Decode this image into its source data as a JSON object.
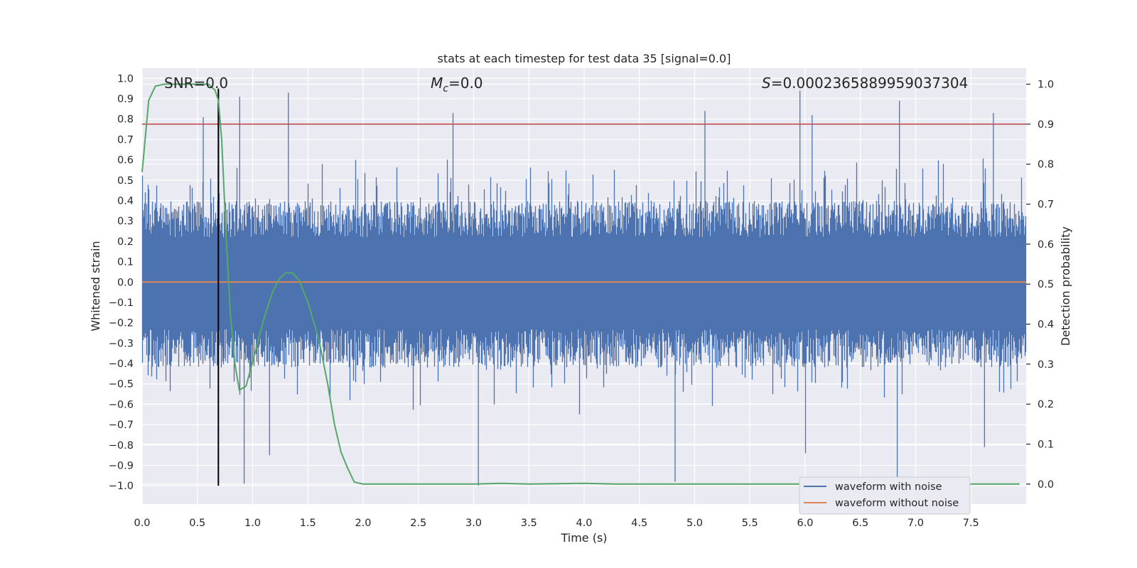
{
  "chart_data": {
    "type": "line",
    "title": "stats at each timestep for test data 35 [signal=0.0]",
    "xlabel": "Time (s)",
    "ylabel": "Whitened strain",
    "y2label": "Detection probability",
    "xlim": [
      0.0,
      8.0
    ],
    "ylim": [
      -1.09,
      1.05
    ],
    "y2lim": [
      -0.05,
      1.04
    ],
    "xticks": [
      0.0,
      0.5,
      1.0,
      1.5,
      2.0,
      2.5,
      3.0,
      3.5,
      4.0,
      4.5,
      5.0,
      5.5,
      6.0,
      6.5,
      7.0,
      7.5
    ],
    "xtick_labels": [
      "0.0",
      "0.5",
      "1.0",
      "1.5",
      "2.0",
      "2.5",
      "3.0",
      "3.5",
      "4.0",
      "4.5",
      "5.0",
      "5.5",
      "6.0",
      "6.5",
      "7.0",
      "7.5"
    ],
    "yticks": [
      -1.0,
      -0.9,
      -0.8,
      -0.7,
      -0.6,
      -0.5,
      -0.4,
      -0.3,
      -0.2,
      -0.1,
      0.0,
      0.1,
      0.2,
      0.3,
      0.4,
      0.5,
      0.6,
      0.7,
      0.8,
      0.9,
      1.0
    ],
    "ytick_labels": [
      "−1.0",
      "−0.9",
      "−0.8",
      "−0.7",
      "−0.6",
      "−0.5",
      "−0.4",
      "−0.3",
      "−0.2",
      "−0.1",
      "0.0",
      "0.1",
      "0.2",
      "0.3",
      "0.4",
      "0.5",
      "0.6",
      "0.7",
      "0.8",
      "0.9",
      "1.0"
    ],
    "y2ticks": [
      0.0,
      0.1,
      0.2,
      0.3,
      0.4,
      0.5,
      0.6,
      0.7,
      0.8,
      0.9,
      1.0
    ],
    "y2tick_labels": [
      "0.0",
      "0.1",
      "0.2",
      "0.3",
      "0.4",
      "0.5",
      "0.6",
      "0.7",
      "0.8",
      "0.9",
      "1.0"
    ],
    "grid": true,
    "annotations": {
      "snr": "SNR=0.0",
      "mc_symbol": "M",
      "mc_sub": "c",
      "mc_value": "=0.0",
      "s_symbol": "S",
      "s_value": "=0.0002365889959037304"
    },
    "series": [
      {
        "name": "waveform with noise",
        "axis": "left",
        "color": "#4c72b0",
        "description": "dense whitened-strain noise",
        "typical_range": [
          -0.42,
          0.4
        ],
        "spikes": [
          {
            "x": 0.55,
            "y": 0.81
          },
          {
            "x": 0.69,
            "y": 0.94
          },
          {
            "x": 0.88,
            "y": 0.91
          },
          {
            "x": 0.92,
            "y": -0.99
          },
          {
            "x": 1.32,
            "y": 0.93
          },
          {
            "x": 1.15,
            "y": -0.85
          },
          {
            "x": 2.81,
            "y": 0.83
          },
          {
            "x": 3.04,
            "y": -1.0
          },
          {
            "x": 5.09,
            "y": 0.84
          },
          {
            "x": 5.95,
            "y": 0.94
          },
          {
            "x": 6.0,
            "y": -0.84
          },
          {
            "x": 6.06,
            "y": 0.82
          },
          {
            "x": 6.85,
            "y": 0.89
          },
          {
            "x": 6.83,
            "y": -1.0
          },
          {
            "x": 4.82,
            "y": -0.98
          },
          {
            "x": 7.62,
            "y": -0.81
          },
          {
            "x": 7.7,
            "y": 0.83
          }
        ]
      },
      {
        "name": "waveform without noise",
        "axis": "left",
        "color": "#dd8452",
        "x": [
          0.0,
          8.0
        ],
        "y": [
          0.0,
          0.0
        ]
      },
      {
        "name": "detection probability",
        "axis": "right",
        "color": "#55a868",
        "x": [
          0.0,
          0.06,
          0.12,
          0.2,
          0.3,
          0.4,
          0.5,
          0.6,
          0.66,
          0.69,
          0.72,
          0.76,
          0.8,
          0.84,
          0.88,
          0.94,
          1.0,
          1.06,
          1.12,
          1.18,
          1.24,
          1.3,
          1.36,
          1.42,
          1.5,
          1.6,
          1.68,
          1.74,
          1.8,
          1.86,
          1.92,
          2.0,
          3.0,
          3.25,
          3.5,
          4.0,
          4.3,
          5.0,
          6.0,
          7.0,
          7.94
        ],
        "y": [
          0.78,
          0.96,
          0.995,
          1.0,
          1.0,
          1.0,
          1.0,
          1.0,
          0.985,
          0.96,
          0.86,
          0.62,
          0.42,
          0.3,
          0.235,
          0.245,
          0.305,
          0.37,
          0.43,
          0.48,
          0.513,
          0.528,
          0.528,
          0.51,
          0.455,
          0.36,
          0.25,
          0.15,
          0.08,
          0.04,
          0.005,
          0.0,
          0.0,
          0.002,
          0.0,
          0.002,
          0.0,
          0.0,
          0.0,
          0.0,
          0.0
        ]
      }
    ],
    "reference_lines": [
      {
        "name": "detection-threshold-line",
        "axis": "right",
        "orientation": "horizontal",
        "value": 0.9,
        "color": "#c44e52"
      },
      {
        "name": "event-time-marker",
        "axis": "left",
        "orientation": "vertical",
        "x": 0.69,
        "y_range": [
          -1.0,
          0.95
        ],
        "color": "#000000"
      }
    ],
    "legend": {
      "position": "lower-right",
      "entries": [
        {
          "label": "waveform with noise",
          "color": "#4c72b0"
        },
        {
          "label": "waveform without noise",
          "color": "#dd8452"
        }
      ]
    }
  }
}
